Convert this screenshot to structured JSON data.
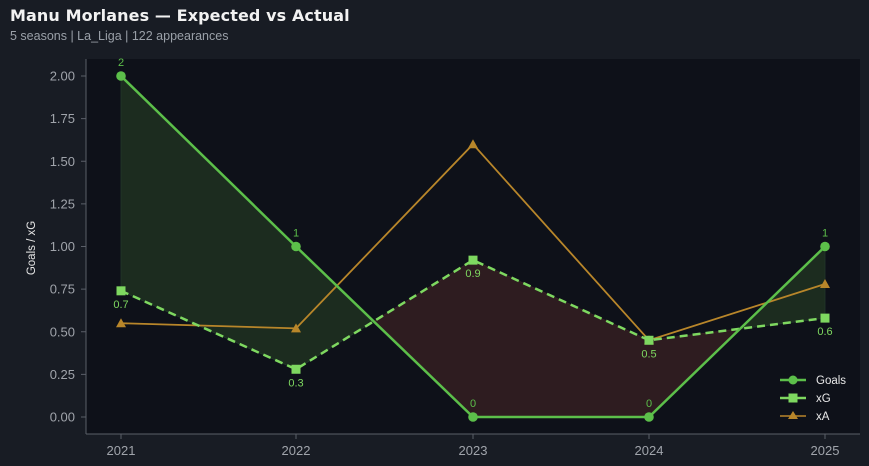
{
  "header": {
    "title": "Manu Morlanes — Expected vs Actual",
    "subtitle": "5 seasons | La_Liga | 122 appearances"
  },
  "colors": {
    "background": "#181c24",
    "plot_background": "#0e1119",
    "goals": "#5cbf4a",
    "xg": "#7ed860",
    "xa": "#b8862a",
    "overperform_fill": "#1c2c1f",
    "underperform_fill": "#2e1c20",
    "axis": "#5a5f68",
    "tick_text": "#a0a4ab"
  },
  "chart_data": {
    "type": "line",
    "title": "Manu Morlanes — Expected vs Actual",
    "subtitle": "5 seasons | La_Liga | 122 appearances",
    "xlabel": "",
    "ylabel": "Goals / xG",
    "x": [
      "2021",
      "2022",
      "2023",
      "2024",
      "2025"
    ],
    "ylim": [
      -0.1,
      2.1
    ],
    "yticks": [
      "0.00",
      "0.25",
      "0.50",
      "0.75",
      "1.00",
      "1.25",
      "1.50",
      "1.75",
      "2.00"
    ],
    "grid": false,
    "legend_position": "lower right",
    "series": [
      {
        "name": "Goals",
        "marker": "circle",
        "style": "solid",
        "values": [
          2,
          1,
          0,
          0,
          1
        ],
        "labels": [
          "2",
          "1",
          "0",
          "0",
          "1"
        ]
      },
      {
        "name": "xG",
        "marker": "square",
        "style": "dashed",
        "values": [
          0.74,
          0.28,
          0.92,
          0.45,
          0.58
        ],
        "labels": [
          "0.7",
          "0.3",
          "0.9",
          "0.5",
          "0.6"
        ]
      },
      {
        "name": "xA",
        "marker": "triangle",
        "style": "solid",
        "values": [
          0.55,
          0.52,
          1.6,
          0.45,
          0.78
        ]
      }
    ],
    "fills": [
      {
        "between": [
          "Goals",
          "xG"
        ],
        "where": "Goals > xG",
        "color": "green"
      },
      {
        "between": [
          "Goals",
          "xG"
        ],
        "where": "Goals < xG",
        "color": "red"
      }
    ]
  },
  "legend": {
    "items": [
      {
        "label": "Goals"
      },
      {
        "label": "xG"
      },
      {
        "label": "xA"
      }
    ]
  }
}
